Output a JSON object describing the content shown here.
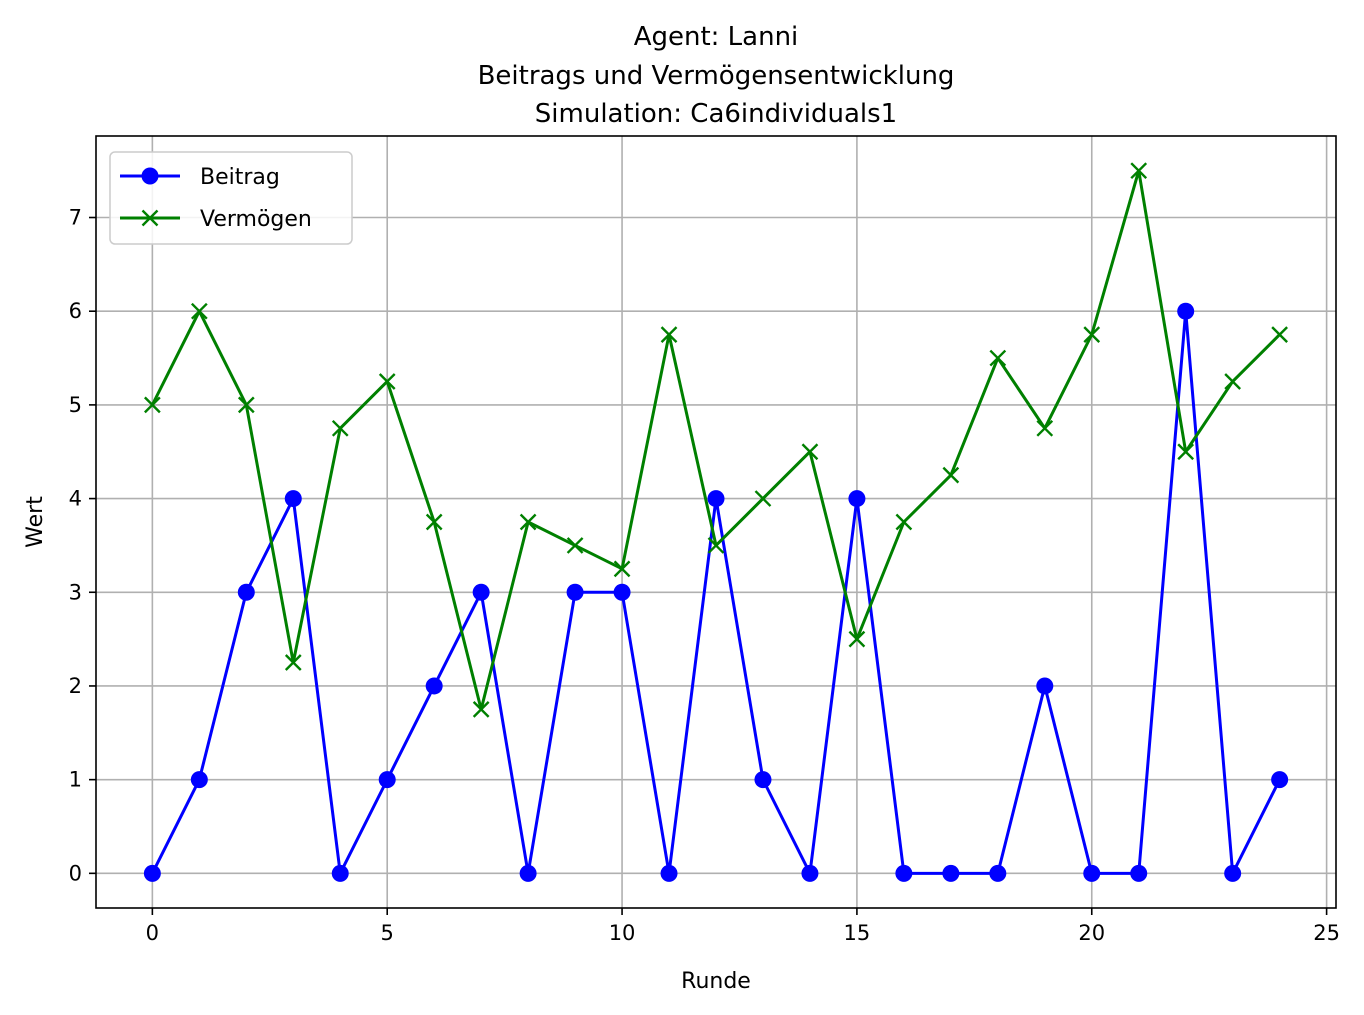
{
  "chart_data": {
    "type": "line",
    "title_lines": [
      "Agent: Lanni",
      "Beitrags und Vermögensentwicklung",
      "Simulation: Ca6individuals1"
    ],
    "xlabel": "Runde",
    "ylabel": "Wert",
    "xlim": [
      -1.2,
      25.2
    ],
    "ylim": [
      -0.37,
      7.87
    ],
    "xticks": [
      0,
      5,
      10,
      15,
      20,
      25
    ],
    "yticks": [
      0,
      1,
      2,
      3,
      4,
      5,
      6,
      7
    ],
    "grid": true,
    "legend_position": "upper-left",
    "x": [
      0,
      1,
      2,
      3,
      4,
      5,
      6,
      7,
      8,
      9,
      10,
      11,
      12,
      13,
      14,
      15,
      16,
      17,
      18,
      19,
      20,
      21,
      22,
      23,
      24
    ],
    "series": [
      {
        "name": "Beitrag",
        "color": "#0000ff",
        "marker": "circle",
        "values": [
          0,
          1,
          3,
          4,
          0,
          1,
          2,
          3,
          0,
          3,
          3,
          0,
          4,
          1,
          0,
          4,
          0,
          0,
          0,
          2,
          0,
          0,
          6,
          0,
          1
        ]
      },
      {
        "name": "Vermögen",
        "color": "#008000",
        "marker": "x",
        "values": [
          5,
          6,
          5,
          2.25,
          4.75,
          5.25,
          3.75,
          1.75,
          3.75,
          3.5,
          3.25,
          5.75,
          3.5,
          4,
          4.5,
          2.5,
          3.75,
          4.25,
          5.5,
          4.75,
          5.75,
          7.5,
          4.5,
          5.25,
          5.75
        ]
      }
    ]
  }
}
